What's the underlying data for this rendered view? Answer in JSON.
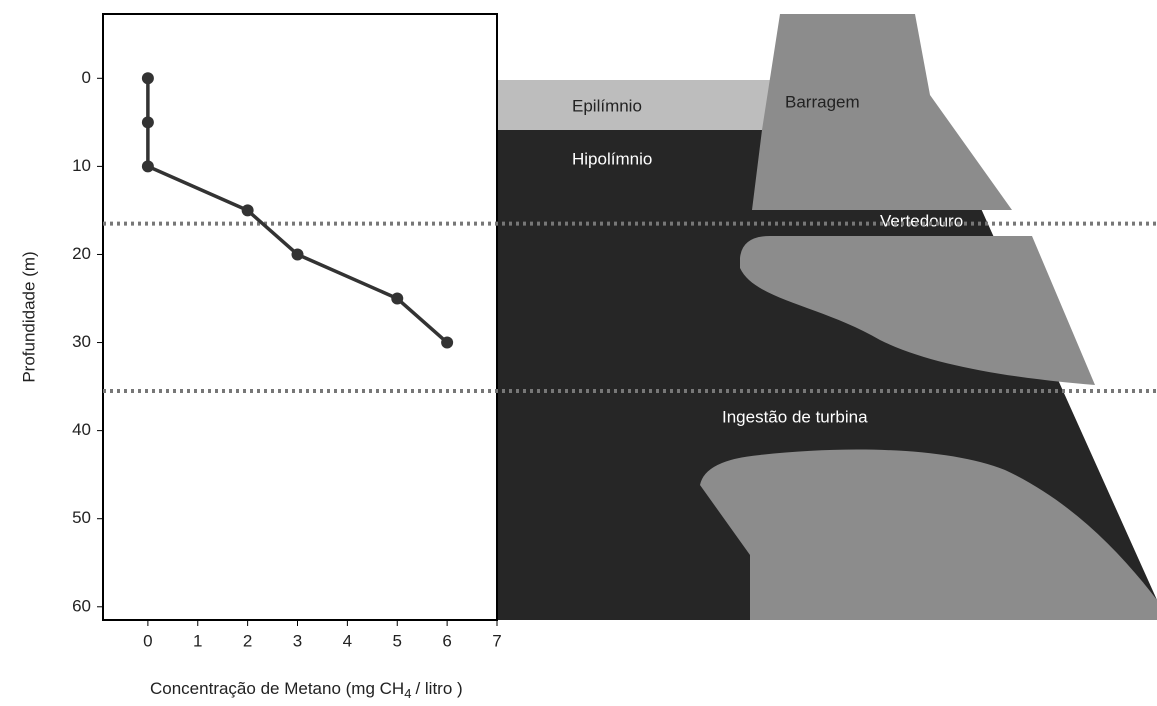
{
  "chart_data": {
    "type": "line",
    "xlabel": "Concentração de Metano",
    "xlabel_unit": "(mg CH",
    "xlabel_sub": "4",
    "xlabel_end": "/ litro )",
    "ylabel": "Profundidade (m)",
    "x": [
      0,
      0,
      0,
      2,
      3,
      5,
      6
    ],
    "series": [
      {
        "color": "#333333",
        "values": [
          0,
          5,
          10,
          15,
          20,
          25,
          30
        ]
      }
    ],
    "xlim": [
      -0.9,
      7
    ],
    "xticks": [
      0,
      1,
      2,
      3,
      4,
      5,
      6,
      7
    ],
    "ylim": [
      -7.3,
      61.5
    ],
    "yticks": [
      0,
      10,
      20,
      30,
      40,
      50,
      60
    ],
    "y_inverted": true,
    "reference_lines": [
      16.5,
      35.5
    ],
    "diagram": {
      "epilimnion": "Epilímnio",
      "dam": "Barragem",
      "hypolimnion": "Hipolímnio",
      "spillway": "Vertedouro",
      "turbine_intake": "Ingestão de turbina"
    }
  }
}
